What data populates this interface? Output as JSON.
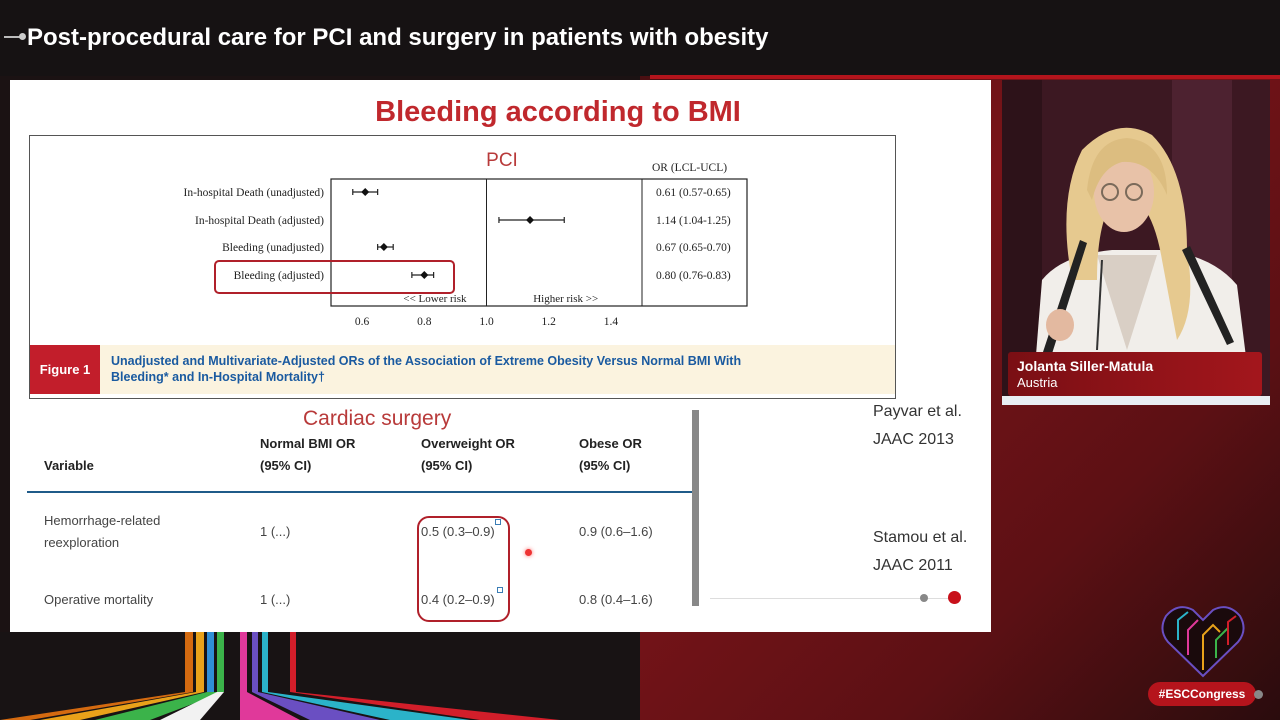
{
  "header": {
    "title": "Post-procedural care for PCI and surgery in patients with obesity"
  },
  "slide": {
    "title": "Bleeding according to BMI",
    "forest_plot": {
      "panel_title": "PCI",
      "or_header": "OR (LCL-UCL)",
      "rows": [
        {
          "label": "In-hospital Death (unadjusted)",
          "or": 0.61,
          "lcl": 0.57,
          "ucl": 0.65,
          "or_text": "0.61 (0.57-0.65)",
          "highlighted": false
        },
        {
          "label": "In-hospital Death (adjusted)",
          "or": 1.14,
          "lcl": 1.04,
          "ucl": 1.25,
          "or_text": "1.14 (1.04-1.25)",
          "highlighted": false
        },
        {
          "label": "Bleeding (unadjusted)",
          "or": 0.67,
          "lcl": 0.65,
          "ucl": 0.7,
          "or_text": "0.67 (0.65-0.70)",
          "highlighted": false
        },
        {
          "label": "Bleeding (adjusted)",
          "or": 0.8,
          "lcl": 0.76,
          "ucl": 0.83,
          "or_text": "0.80 (0.76-0.83)",
          "highlighted": true
        }
      ],
      "axis_ticks": [
        "0.6",
        "0.8",
        "1.0",
        "1.2",
        "1.4"
      ],
      "lower_label": "<< Lower risk",
      "higher_label": "Higher risk >>",
      "figure_label": "Figure 1",
      "caption_line1": "Unadjusted and Multivariate-Adjusted ORs of the Association of Extreme Obesity Versus Normal BMI With",
      "caption_line2": "Bleeding* and In-Hospital Mortality†"
    },
    "cardiac_surgery": {
      "title": "Cardiac surgery",
      "col_variable": "Variable",
      "col_normal_1": "Normal BMI OR",
      "col_normal_2": "(95% CI)",
      "col_over_1": "Overweight OR",
      "col_over_2": "(95% CI)",
      "col_obese_1": "Obese OR",
      "col_obese_2": "(95% CI)",
      "rows": [
        {
          "var1": "Hemorrhage-related",
          "var2": "reexploration",
          "normal": "1 (...)",
          "over": "0.5 (0.3–0.9)",
          "obese": "0.9 (0.6–1.6)"
        },
        {
          "var1": "Operative mortality",
          "var2": "",
          "normal": "1 (...)",
          "over": "0.4 (0.2–0.9)",
          "obese": "0.8 (0.4–1.6)"
        }
      ]
    },
    "refs": {
      "ref1_line1": "Payvar et al.",
      "ref1_line2": "JAAC 2013",
      "ref2_line1": "Stamou et al.",
      "ref2_line2": "JAAC 2011"
    }
  },
  "speaker": {
    "name": "Jolanta Siller-Matula",
    "country": "Austria"
  },
  "footer": {
    "hashtag": "#ESCCongress"
  }
}
